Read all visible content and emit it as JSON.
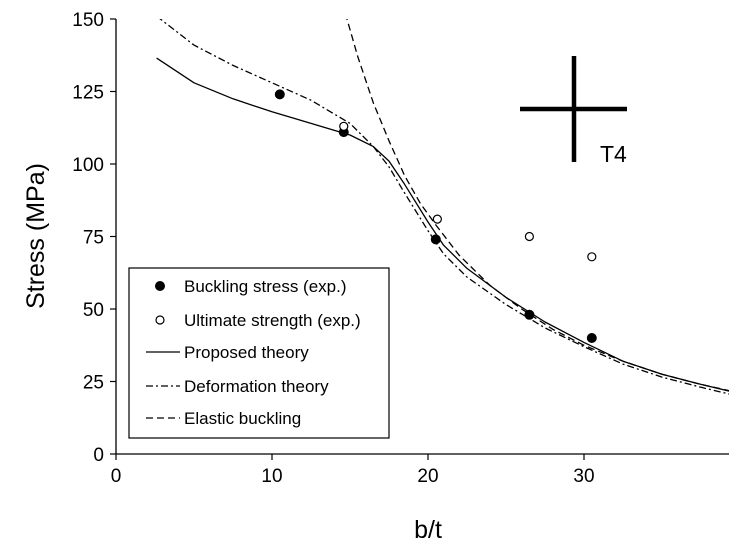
{
  "chart_data": {
    "type": "line",
    "title": "",
    "xlabel": "b/t",
    "ylabel": "Stress (MPa)",
    "xlim": [
      0,
      40
    ],
    "ylim": [
      0,
      150
    ],
    "xticks": [
      0,
      10,
      20,
      30,
      40
    ],
    "yticks": [
      0,
      25,
      50,
      75,
      100,
      125,
      150
    ],
    "grid": false,
    "legend_position": "bottom-left",
    "annotation": "T4",
    "series": [
      {
        "name": "Buckling stress (exp.)",
        "kind": "scatter-filled",
        "points": [
          [
            10.5,
            124
          ],
          [
            14.6,
            111
          ],
          [
            20.5,
            74
          ],
          [
            26.5,
            48
          ],
          [
            30.5,
            40
          ]
        ]
      },
      {
        "name": "Ultimate strength (exp.)",
        "kind": "scatter-open",
        "points": [
          [
            14.6,
            113
          ],
          [
            20.6,
            81
          ],
          [
            26.5,
            75
          ],
          [
            30.5,
            68
          ]
        ]
      },
      {
        "name": "Proposed theory",
        "kind": "line-solid",
        "points": [
          [
            2.6,
            136.5
          ],
          [
            5,
            128
          ],
          [
            7.5,
            122.5
          ],
          [
            10,
            118
          ],
          [
            12.5,
            114
          ],
          [
            15,
            110
          ],
          [
            16.5,
            106
          ],
          [
            17.5,
            101
          ],
          [
            18.5,
            93
          ],
          [
            20,
            80
          ],
          [
            21,
            72
          ],
          [
            22.5,
            64
          ],
          [
            25,
            54
          ],
          [
            27.5,
            45.5
          ],
          [
            30,
            38.5
          ],
          [
            32.5,
            32
          ],
          [
            35,
            27.5
          ],
          [
            37.5,
            24
          ],
          [
            40,
            20.8
          ]
        ]
      },
      {
        "name": "Deformation theory",
        "kind": "line-dashdot",
        "points": [
          [
            2.6,
            151
          ],
          [
            5,
            141
          ],
          [
            7.5,
            134
          ],
          [
            10,
            128
          ],
          [
            12.5,
            122
          ],
          [
            15,
            114
          ],
          [
            16.5,
            106
          ],
          [
            17.5,
            99
          ],
          [
            18.5,
            90
          ],
          [
            20,
            77
          ],
          [
            21,
            69
          ],
          [
            22.5,
            61
          ],
          [
            25,
            51.5
          ],
          [
            27.5,
            43.5
          ],
          [
            30,
            37
          ],
          [
            32.5,
            31
          ],
          [
            35,
            26.5
          ],
          [
            37.5,
            23
          ],
          [
            40,
            19.8
          ]
        ]
      },
      {
        "name": "Elastic buckling",
        "kind": "line-dashed",
        "points": [
          [
            14.7,
            152
          ],
          [
            15.5,
            137
          ],
          [
            16.5,
            121
          ],
          [
            17.5,
            108
          ],
          [
            18.5,
            96
          ],
          [
            19.5,
            86.5
          ],
          [
            20.5,
            79
          ],
          [
            22,
            68.5
          ],
          [
            24,
            58
          ],
          [
            26,
            50
          ],
          [
            28,
            43
          ],
          [
            30,
            37.5
          ],
          [
            32.5,
            32
          ],
          [
            35,
            27.5
          ],
          [
            37.5,
            24
          ],
          [
            40,
            21
          ]
        ]
      }
    ]
  }
}
